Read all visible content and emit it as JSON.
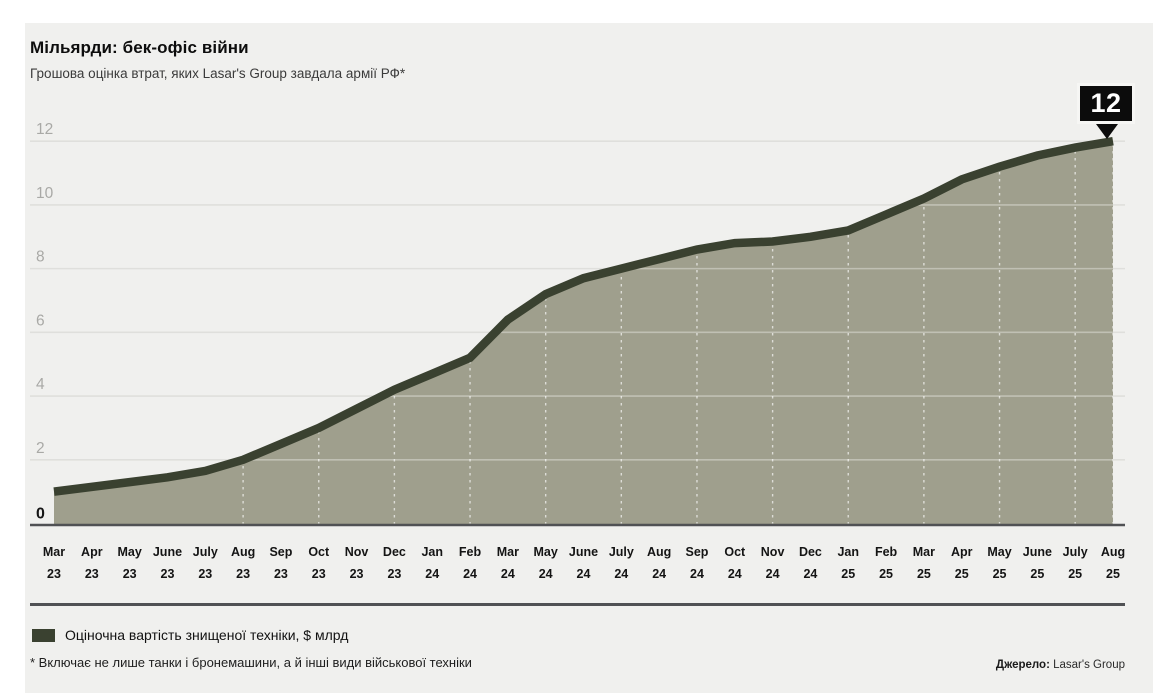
{
  "header": {
    "title": "Мільярди: бек-офіс війни",
    "subtitle": "Грошова оцінка втрат, яких Lasar's Group завдала армії РФ*"
  },
  "chart_data": {
    "type": "area",
    "title": "Мільярди: бек-офіс війни",
    "subtitle": "Грошова оцінка втрат, яких Lasar's Group завдала армії РФ*",
    "categories": [
      "Mar 23",
      "Apr 23",
      "May 23",
      "June 23",
      "July 23",
      "Aug 23",
      "Sep 23",
      "Oct 23",
      "Nov 23",
      "Dec 23",
      "Jan 24",
      "Feb 24",
      "Mar 24",
      "May 24",
      "June 24",
      "July 24",
      "Aug 24",
      "Sep 24",
      "Oct 24",
      "Nov 24",
      "Dec 24",
      "Jan 25",
      "Feb 25",
      "Mar 25",
      "Apr 25",
      "May 25",
      "June 25",
      "July 25",
      "Aug 25"
    ],
    "values": [
      1.0,
      1.15,
      1.3,
      1.45,
      1.65,
      2.0,
      2.5,
      3.0,
      3.6,
      4.2,
      4.7,
      5.2,
      6.4,
      7.2,
      7.7,
      8.0,
      8.3,
      8.6,
      8.8,
      8.85,
      9.0,
      9.2,
      9.7,
      10.2,
      10.8,
      11.2,
      11.55,
      11.8,
      12.0
    ],
    "series_name": "Оціночна вартість знищеної техніки, $ млрд",
    "ylim": [
      0,
      12
    ],
    "yticks": [
      0,
      2,
      4,
      6,
      8,
      10,
      12
    ],
    "end_label": "12",
    "grid": "horizontal solid + vertical dashed inside area",
    "legend_position": "bottom-left",
    "colors": {
      "line": "#3a4130",
      "fill": "#9f9f8d",
      "panel": "#f0f0ee",
      "axis": "#505154",
      "gridline": "#dfdfdc"
    }
  },
  "legend": {
    "label": "Оціночна вартість знищеної техніки, $ млрд"
  },
  "footnote": "* Включає не лише танки і бронемашини, а й інші види військової техніки",
  "source": {
    "label": "Джерело:",
    "value": "Lasar's Group"
  }
}
